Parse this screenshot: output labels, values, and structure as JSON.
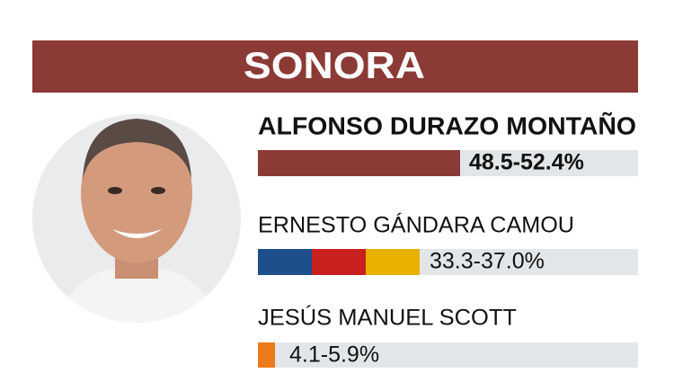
{
  "header": {
    "title": "SONORA"
  },
  "candidates": [
    {
      "name": "ALFONSO DURAZO MONTAÑO",
      "range": "48.5-52.4%"
    },
    {
      "name": "ERNESTO GÁNDARA CAMOU",
      "range": "33.3-37.0%"
    },
    {
      "name": "JESÚS MANUEL SCOTT",
      "range": "4.1-5.9%"
    }
  ]
}
